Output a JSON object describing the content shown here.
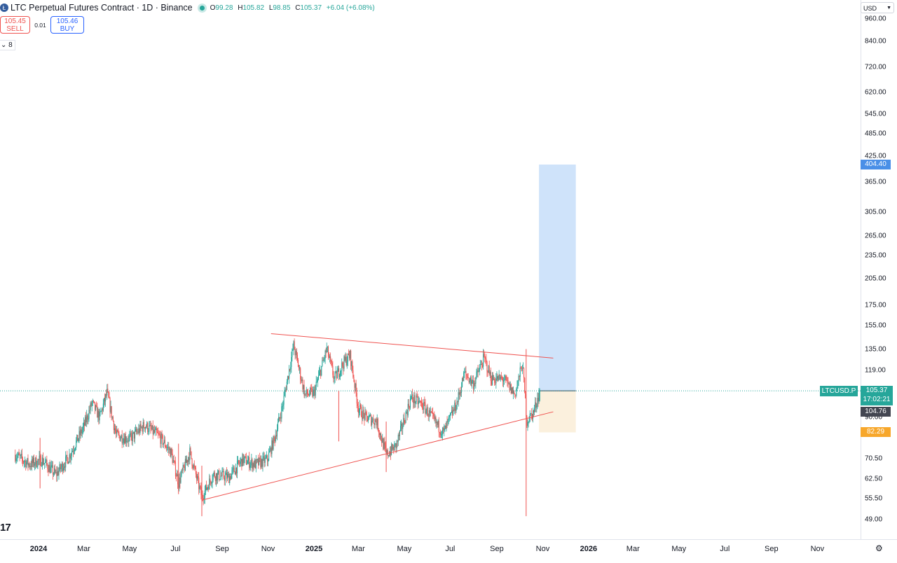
{
  "header": {
    "symbol_title": "LTC Perpetual Futures Contract · 1D · Binance",
    "ohlc": [
      {
        "key": "O",
        "value": "99.28"
      },
      {
        "key": "H",
        "value": "105.82"
      },
      {
        "key": "L",
        "value": "98.85"
      },
      {
        "key": "C",
        "value": "105.37"
      }
    ],
    "change": "+6.04 (+6.08%)"
  },
  "trade": {
    "sell_price": "105.45",
    "sell_label": "SELL",
    "spread": "0.01",
    "buy_price": "105.46",
    "buy_label": "BUY"
  },
  "indicators_count": "8",
  "tv_logo": "17",
  "currency": "USD",
  "price_axis": {
    "ticks": [
      "960.00",
      "840.00",
      "720.00",
      "620.00",
      "545.00",
      "485.00",
      "425.00",
      "365.00",
      "305.00",
      "265.00",
      "235.00",
      "205.00",
      "175.00",
      "155.00",
      "135.00",
      "119.00",
      "90.00",
      "70.50",
      "62.50",
      "55.50",
      "49.00"
    ],
    "target_label": "404.40",
    "last_close_label": "104.76",
    "stop_label": "82.29",
    "symbol_label": "LTCUSD.P",
    "current_price": "105.37",
    "countdown": "17:02:21"
  },
  "time_axis": {
    "labels": [
      {
        "text": "2024",
        "bold": true
      },
      {
        "text": "Mar",
        "bold": false
      },
      {
        "text": "May",
        "bold": false
      },
      {
        "text": "Jul",
        "bold": false
      },
      {
        "text": "Sep",
        "bold": false
      },
      {
        "text": "Nov",
        "bold": false
      },
      {
        "text": "2025",
        "bold": true
      },
      {
        "text": "Mar",
        "bold": false
      },
      {
        "text": "May",
        "bold": false
      },
      {
        "text": "Jul",
        "bold": false
      },
      {
        "text": "Sep",
        "bold": false
      },
      {
        "text": "Nov",
        "bold": false
      },
      {
        "text": "2026",
        "bold": true
      },
      {
        "text": "Mar",
        "bold": false
      },
      {
        "text": "May",
        "bold": false
      },
      {
        "text": "Jul",
        "bold": false
      },
      {
        "text": "Sep",
        "bold": false
      },
      {
        "text": "Nov",
        "bold": false
      }
    ]
  },
  "colors": {
    "up": "#26a69a",
    "down": "#ef5350",
    "trendline": "#ef5350",
    "target_zone": "#cfe3fa",
    "stop_zone": "#fbf0dd",
    "price_line": "#26a69a",
    "target_badge": "#4a8fe7",
    "stop_badge": "#f7a72b",
    "close_badge": "#434651"
  },
  "chart_data": {
    "type": "candlestick",
    "symbol": "LTCUSD.P",
    "interval": "1D",
    "scale": "log",
    "y_range": [
      49,
      960
    ],
    "x_range": [
      "2023-12-01",
      "2026-12-15"
    ],
    "anchors": [
      {
        "date": "2023-12-01",
        "price": 72
      },
      {
        "date": "2023-12-20",
        "price": 68
      },
      {
        "date": "2024-01-05",
        "price": 70
      },
      {
        "date": "2024-01-24",
        "price": 64
      },
      {
        "date": "2024-02-10",
        "price": 71
      },
      {
        "date": "2024-03-01",
        "price": 85
      },
      {
        "date": "2024-03-12",
        "price": 98
      },
      {
        "date": "2024-03-22",
        "price": 90
      },
      {
        "date": "2024-04-01",
        "price": 104
      },
      {
        "date": "2024-04-13",
        "price": 81
      },
      {
        "date": "2024-05-01",
        "price": 79
      },
      {
        "date": "2024-05-21",
        "price": 86
      },
      {
        "date": "2024-06-10",
        "price": 80
      },
      {
        "date": "2024-06-25",
        "price": 73
      },
      {
        "date": "2024-07-05",
        "price": 61
      },
      {
        "date": "2024-07-20",
        "price": 73
      },
      {
        "date": "2024-08-05",
        "price": 56
      },
      {
        "date": "2024-08-20",
        "price": 64
      },
      {
        "date": "2024-09-10",
        "price": 63
      },
      {
        "date": "2024-09-28",
        "price": 70
      },
      {
        "date": "2024-10-15",
        "price": 68
      },
      {
        "date": "2024-10-31",
        "price": 70
      },
      {
        "date": "2024-11-10",
        "price": 80
      },
      {
        "date": "2024-11-20",
        "price": 96
      },
      {
        "date": "2024-12-05",
        "price": 138
      },
      {
        "date": "2024-12-20",
        "price": 103
      },
      {
        "date": "2025-01-01",
        "price": 104
      },
      {
        "date": "2025-01-18",
        "price": 135
      },
      {
        "date": "2025-01-28",
        "price": 113
      },
      {
        "date": "2025-02-10",
        "price": 125
      },
      {
        "date": "2025-02-18",
        "price": 130
      },
      {
        "date": "2025-03-01",
        "price": 95
      },
      {
        "date": "2025-03-10",
        "price": 90
      },
      {
        "date": "2025-03-25",
        "price": 88
      },
      {
        "date": "2025-04-07",
        "price": 72
      },
      {
        "date": "2025-04-20",
        "price": 76
      },
      {
        "date": "2025-05-10",
        "price": 101
      },
      {
        "date": "2025-05-25",
        "price": 97
      },
      {
        "date": "2025-06-10",
        "price": 88
      },
      {
        "date": "2025-06-22",
        "price": 82
      },
      {
        "date": "2025-07-10",
        "price": 98
      },
      {
        "date": "2025-07-20",
        "price": 117
      },
      {
        "date": "2025-08-01",
        "price": 110
      },
      {
        "date": "2025-08-15",
        "price": 128
      },
      {
        "date": "2025-08-25",
        "price": 113
      },
      {
        "date": "2025-09-10",
        "price": 113
      },
      {
        "date": "2025-09-25",
        "price": 103
      },
      {
        "date": "2025-10-05",
        "price": 124
      },
      {
        "date": "2025-10-11",
        "price": 88
      },
      {
        "date": "2025-10-20",
        "price": 93
      },
      {
        "date": "2025-10-28",
        "price": 105.37
      }
    ],
    "wick_spikes": [
      {
        "date": "2024-01-03",
        "low": 59
      },
      {
        "date": "2024-07-05",
        "low": 57
      },
      {
        "date": "2024-08-05",
        "low": 50
      },
      {
        "date": "2025-02-03",
        "low": 78
      },
      {
        "date": "2025-04-07",
        "low": 65
      },
      {
        "date": "2025-10-10",
        "high": 135,
        "low": 50
      }
    ],
    "last_candle": {
      "date": "2025-10-28",
      "open": 99.28,
      "high": 105.82,
      "low": 98.85,
      "close": 105.37
    },
    "trendlines": [
      {
        "from": {
          "date": "2024-11-05",
          "price": 148
        },
        "to": {
          "date": "2025-11-15",
          "price": 128
        }
      },
      {
        "from": {
          "date": "2024-08-05",
          "price": 55
        },
        "to": {
          "date": "2025-11-15",
          "price": 93
        }
      }
    ],
    "position": {
      "side": "long",
      "start": "2025-10-28",
      "end": "2025-12-15",
      "entry": 105.37,
      "target": 404.4,
      "stop": 82.29
    }
  }
}
